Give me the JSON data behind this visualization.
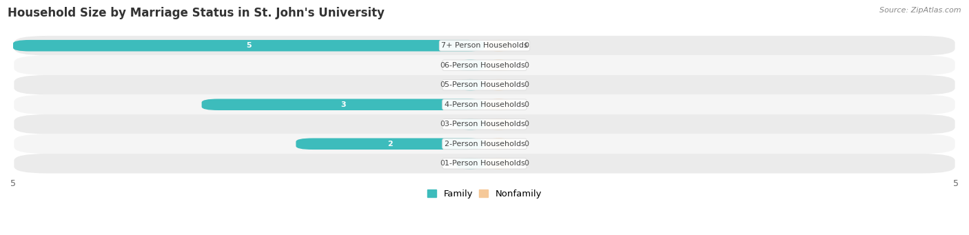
{
  "title": "Household Size by Marriage Status in St. John's University",
  "source": "Source: ZipAtlas.com",
  "categories": [
    "7+ Person Households",
    "6-Person Households",
    "5-Person Households",
    "4-Person Households",
    "3-Person Households",
    "2-Person Households",
    "1-Person Households"
  ],
  "family_values": [
    5,
    0,
    0,
    3,
    0,
    2,
    0
  ],
  "nonfamily_values": [
    0,
    0,
    0,
    0,
    0,
    0,
    0
  ],
  "family_color": "#3DBCBC",
  "nonfamily_color": "#F5C898",
  "xlim_left": -5,
  "xlim_right": 5,
  "title_fontsize": 12,
  "source_fontsize": 8,
  "cat_fontsize": 8,
  "val_fontsize": 8,
  "tick_fontsize": 9,
  "legend_labels": [
    "Family",
    "Nonfamily"
  ],
  "row_colors": [
    "#EBEBEB",
    "#F5F5F5"
  ],
  "min_bar_width": 0.3
}
